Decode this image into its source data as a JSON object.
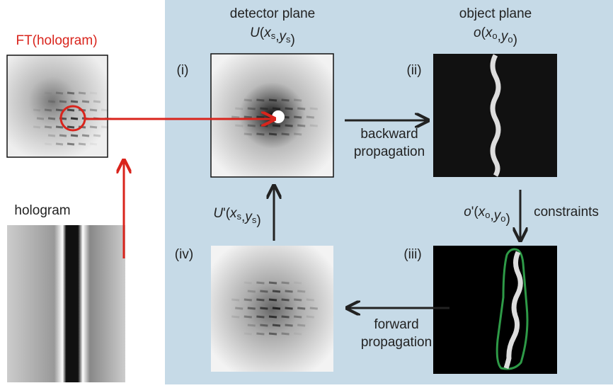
{
  "left": {
    "ft_label": "FT(hologram)",
    "hologram_label": "hologram"
  },
  "detector": {
    "title": "detector plane",
    "formula": [
      "U",
      "(",
      "x",
      "s",
      ",",
      "y",
      "s",
      ")"
    ]
  },
  "object": {
    "title": "object plane",
    "formula": [
      "o",
      "(",
      "x",
      "o",
      ",",
      "y",
      "o",
      ")"
    ]
  },
  "panels": {
    "i": "(i)",
    "ii": "(ii)",
    "iii": "(iii)",
    "iv": "(iv)"
  },
  "arrows": {
    "backward": [
      "backward",
      "propagation"
    ],
    "forward": [
      "forward",
      "propagation"
    ],
    "constraints": "constraints",
    "constraint_formula": [
      "o",
      "'",
      "(",
      "x",
      "o",
      ",",
      "y",
      "o",
      ")"
    ],
    "update_formula": [
      "U",
      "'",
      "(",
      "x",
      "s",
      ",",
      "y",
      "s",
      ")"
    ]
  }
}
